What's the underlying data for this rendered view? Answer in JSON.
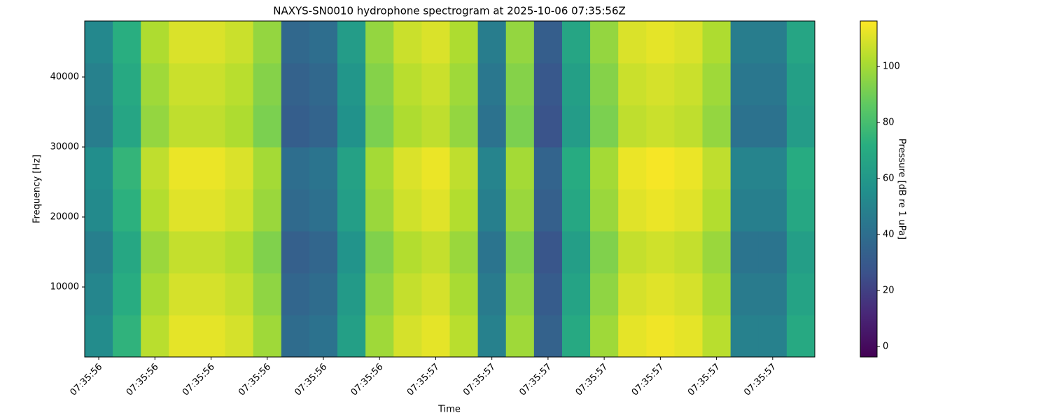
{
  "chart_data": {
    "type": "heatmap",
    "title": "NAXYS-SN0010 hydrophone spectrogram at 2025-10-06 07:35:56Z",
    "xlabel": "Time",
    "ylabel": "Frequency [Hz]",
    "colorbar_label": "Pressure [dB re 1 uPa]",
    "colormap": "viridis",
    "xlim": [
      0,
      13
    ],
    "ylim": [
      0,
      48000
    ],
    "xbins": [
      0,
      0.5,
      1,
      1.5,
      2,
      2.5,
      3,
      3.5,
      4,
      4.5,
      5,
      5.5,
      6,
      6.5,
      7,
      7.5,
      8,
      8.5,
      9,
      9.5,
      10,
      10.5,
      11,
      11.5,
      12,
      12.5,
      13
    ],
    "ybins": [
      0,
      6000,
      12000,
      18000,
      24000,
      30000,
      36000,
      42000,
      48000
    ],
    "xticks": [
      {
        "value": 0.25,
        "label": "07:35:56"
      },
      {
        "value": 1.25,
        "label": "07:35:56"
      },
      {
        "value": 2.25,
        "label": "07:35:56"
      },
      {
        "value": 3.25,
        "label": "07:35:56"
      },
      {
        "value": 4.25,
        "label": "07:35:56"
      },
      {
        "value": 5.25,
        "label": "07:35:56"
      },
      {
        "value": 6.25,
        "label": "07:35:57"
      },
      {
        "value": 7.25,
        "label": "07:35:57"
      },
      {
        "value": 8.25,
        "label": "07:35:57"
      },
      {
        "value": 9.25,
        "label": "07:35:57"
      },
      {
        "value": 10.25,
        "label": "07:35:57"
      },
      {
        "value": 11.25,
        "label": "07:35:57"
      },
      {
        "value": 12.25,
        "label": "07:35:57"
      }
    ],
    "yticks": [
      10000,
      20000,
      30000,
      40000
    ],
    "clim": [
      -3.75,
      116.25
    ],
    "cticks": [
      0,
      20,
      40,
      60,
      80,
      100
    ],
    "values": [
      [
        54,
        74,
        104,
        112,
        112,
        109,
        99,
        39,
        42,
        64,
        99,
        109,
        112,
        104,
        49,
        99,
        34,
        69,
        99,
        112,
        114,
        112,
        104,
        49,
        49,
        69
      ],
      [
        51,
        71,
        101,
        109,
        109,
        106,
        96,
        36,
        39,
        61,
        96,
        106,
        109,
        101,
        46,
        96,
        31,
        66,
        96,
        109,
        111,
        109,
        101,
        46,
        46,
        66
      ],
      [
        48,
        68,
        98,
        106,
        106,
        103,
        93,
        33,
        36,
        58,
        93,
        103,
        106,
        98,
        43,
        93,
        28,
        63,
        93,
        106,
        108,
        106,
        98,
        43,
        43,
        63
      ],
      [
        53,
        73,
        103,
        111,
        111,
        108,
        98,
        38,
        41,
        63,
        98,
        108,
        111,
        103,
        48,
        98,
        33,
        68,
        98,
        111,
        113,
        111,
        103,
        48,
        48,
        68
      ],
      [
        55,
        75,
        105,
        113,
        113,
        110,
        100,
        40,
        43,
        65,
        100,
        110,
        113,
        105,
        50,
        100,
        35,
        70,
        100,
        113,
        115,
        113,
        105,
        50,
        50,
        70
      ],
      [
        47,
        67,
        97,
        105,
        105,
        102,
        92,
        32,
        35,
        57,
        92,
        102,
        105,
        97,
        42,
        92,
        27,
        62,
        92,
        105,
        107,
        105,
        97,
        42,
        42,
        62
      ],
      [
        49,
        69,
        99,
        107,
        107,
        104,
        94,
        34,
        37,
        59,
        94,
        104,
        107,
        99,
        44,
        94,
        29,
        64,
        94,
        107,
        109,
        107,
        99,
        44,
        44,
        64
      ],
      [
        52,
        72,
        102,
        110,
        110,
        107,
        97,
        37,
        40,
        62,
        97,
        107,
        110,
        102,
        47,
        97,
        32,
        67,
        97,
        110,
        112,
        110,
        102,
        47,
        47,
        67
      ]
    ]
  }
}
